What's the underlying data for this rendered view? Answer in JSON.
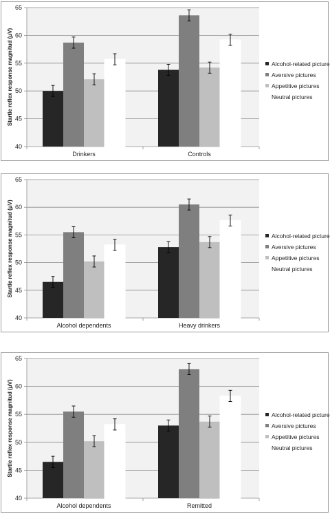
{
  "chart_data": [
    {
      "type": "bar",
      "categories": [
        "Drinkers",
        "Controls"
      ],
      "ylabel": "Startle reflex response magnitud (μV)",
      "ylim": [
        40,
        65
      ],
      "yticks": [
        "40",
        "45",
        "50",
        "55",
        "60",
        "65"
      ],
      "grid": true,
      "legend_position": "right",
      "series": [
        {
          "name": "Alcohol-related  pictures",
          "color": "#262626",
          "values": [
            50.0,
            53.8
          ],
          "errors": [
            1.0,
            1.0
          ]
        },
        {
          "name": "Aversive pictures",
          "color": "#7f7f7f",
          "values": [
            58.7,
            63.6
          ],
          "errors": [
            1.0,
            1.0
          ]
        },
        {
          "name": "Appetitive pictures",
          "color": "#bfbfbf",
          "values": [
            52.1,
            54.2
          ],
          "errors": [
            1.0,
            1.0
          ]
        },
        {
          "name": "Neutral pictures",
          "color": "#ffffff",
          "values": [
            55.7,
            59.2
          ],
          "errors": [
            1.0,
            1.0
          ]
        }
      ]
    },
    {
      "type": "bar",
      "categories": [
        "Alcohol dependents",
        "Heavy drinkers"
      ],
      "ylabel": "Startle reflex response magnitud (μV)",
      "ylim": [
        40,
        65
      ],
      "yticks": [
        "40",
        "45",
        "50",
        "55",
        "60",
        "65"
      ],
      "grid": true,
      "legend_position": "right",
      "series": [
        {
          "name": "Alcohol-related  pictures",
          "color": "#262626",
          "values": [
            46.5,
            52.8
          ],
          "errors": [
            1.0,
            1.0
          ]
        },
        {
          "name": "Aversive pictures",
          "color": "#7f7f7f",
          "values": [
            55.5,
            60.5
          ],
          "errors": [
            1.0,
            1.0
          ]
        },
        {
          "name": "Appetitive pictures",
          "color": "#bfbfbf",
          "values": [
            50.2,
            53.7
          ],
          "errors": [
            1.0,
            1.0
          ]
        },
        {
          "name": "Neutral pictures",
          "color": "#ffffff",
          "values": [
            53.2,
            57.6
          ],
          "errors": [
            1.0,
            1.0
          ]
        }
      ]
    },
    {
      "type": "bar",
      "categories": [
        "Alcohol dependents",
        "Remitted"
      ],
      "ylabel": "Startle reflex response magnitud (μV)",
      "ylim": [
        40,
        65
      ],
      "yticks": [
        "40",
        "45",
        "50",
        "55",
        "60",
        "65"
      ],
      "grid": true,
      "legend_position": "right",
      "series": [
        {
          "name": "Alcohol-related  pictures",
          "color": "#262626",
          "values": [
            46.5,
            53.0
          ],
          "errors": [
            1.0,
            1.0
          ]
        },
        {
          "name": "Aversive pictures",
          "color": "#7f7f7f",
          "values": [
            55.5,
            63.1
          ],
          "errors": [
            1.0,
            1.0
          ]
        },
        {
          "name": "Appetitive pictures",
          "color": "#bfbfbf",
          "values": [
            50.2,
            53.7
          ],
          "errors": [
            1.0,
            1.0
          ]
        },
        {
          "name": "Neutral pictures",
          "color": "#ffffff",
          "values": [
            53.2,
            58.3
          ],
          "errors": [
            1.0,
            1.0
          ]
        }
      ]
    }
  ]
}
